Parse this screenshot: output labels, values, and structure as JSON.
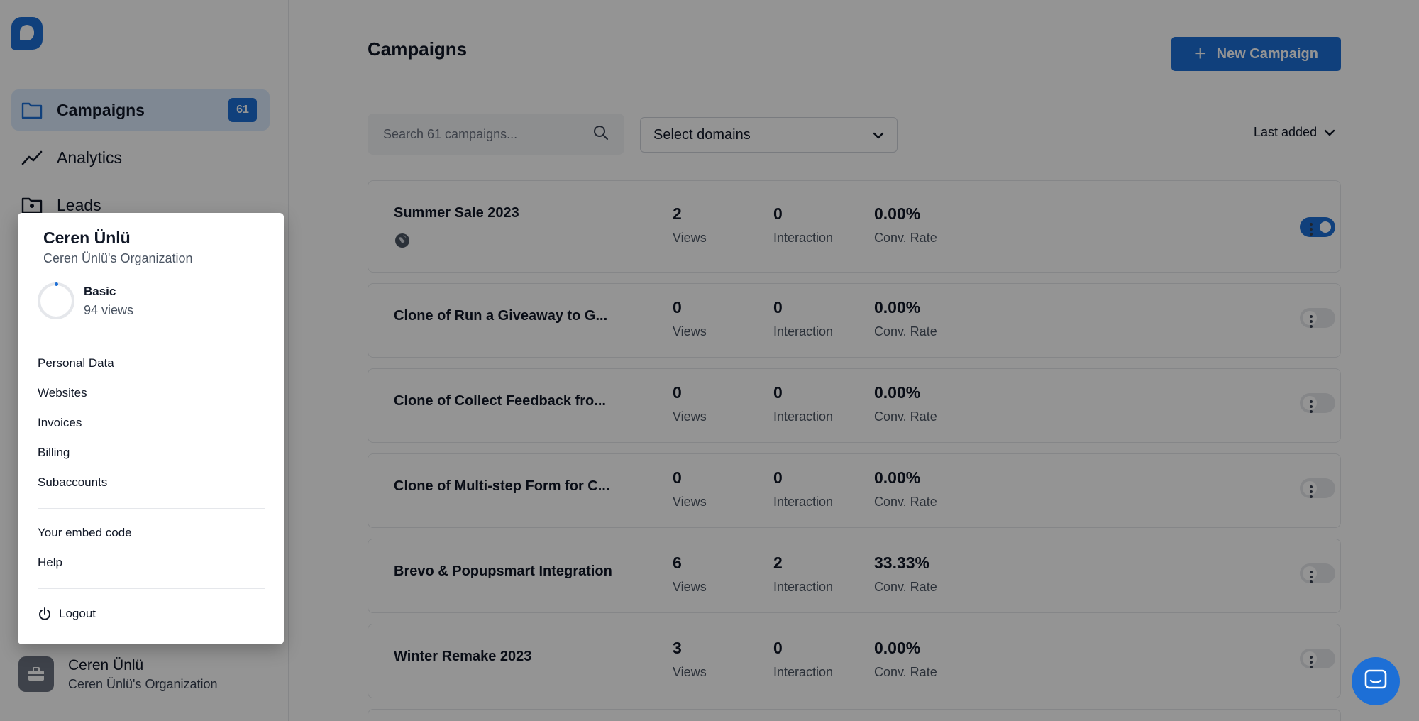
{
  "sidebar": {
    "nav": [
      {
        "label": "Campaigns",
        "badge": "61"
      },
      {
        "label": "Analytics"
      },
      {
        "label": "Leads"
      }
    ],
    "account": {
      "name": "Ceren Ünlü",
      "org": "Ceren Ünlü's Organization"
    }
  },
  "header": {
    "title": "Campaigns",
    "new_button": "New Campaign"
  },
  "toolbar": {
    "search_placeholder": "Search 61 campaigns...",
    "domains_label": "Select domains",
    "sort_label": "Last added"
  },
  "stat_labels": {
    "views": "Views",
    "interaction": "Interaction",
    "conv": "Conv. Rate"
  },
  "campaigns": [
    {
      "name": "Summer Sale 2023",
      "views": "2",
      "interaction": "0",
      "conv": "0.00%",
      "active": true
    },
    {
      "name": "Clone of Run a Giveaway to G...",
      "views": "0",
      "interaction": "0",
      "conv": "0.00%",
      "active": false
    },
    {
      "name": "Clone of Collect Feedback fro...",
      "views": "0",
      "interaction": "0",
      "conv": "0.00%",
      "active": false
    },
    {
      "name": "Clone of Multi-step Form for C...",
      "views": "0",
      "interaction": "0",
      "conv": "0.00%",
      "active": false
    },
    {
      "name": "Brevo & Popupsmart Integration",
      "views": "6",
      "interaction": "2",
      "conv": "33.33%",
      "active": false
    },
    {
      "name": "Winter Remake 2023",
      "views": "3",
      "interaction": "0",
      "conv": "0.00%",
      "active": false
    }
  ],
  "menu": {
    "name": "Ceren Ünlü",
    "org": "Ceren Ünlü's Organization",
    "plan": "Basic",
    "plan_views": "94 views",
    "items": [
      "Personal Data",
      "Websites",
      "Invoices",
      "Billing",
      "Subaccounts"
    ],
    "extra": [
      "Your embed code",
      "Help"
    ],
    "logout": "Logout"
  },
  "colors": {
    "accent": "#1d6fd6",
    "overlay": "rgba(0,0,0,0.42)"
  }
}
